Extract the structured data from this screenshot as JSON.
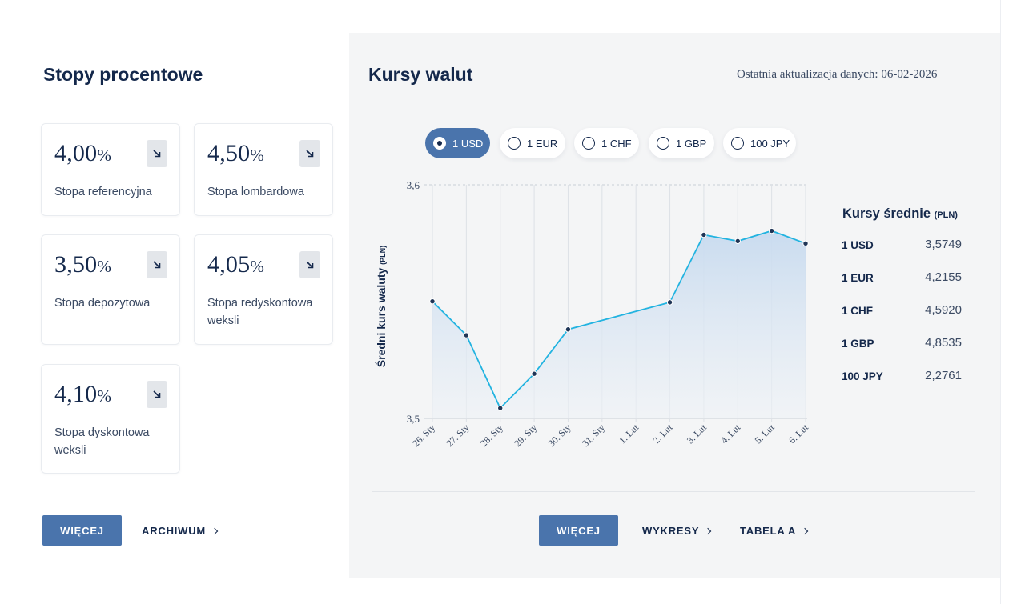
{
  "rates": {
    "title": "Stopy procentowe",
    "items": [
      {
        "value": "4,00",
        "pct": "%",
        "label": "Stopa referencyjna"
      },
      {
        "value": "4,50",
        "pct": "%",
        "label": "Stopa lombardowa"
      },
      {
        "value": "3,50",
        "pct": "%",
        "label": "Stopa depozytowa"
      },
      {
        "value": "4,05",
        "pct": "%",
        "label": "Stopa redyskontowa weksli"
      },
      {
        "value": "4,10",
        "pct": "%",
        "label": "Stopa dyskontowa weksli"
      }
    ],
    "more_button": "WIĘCEJ",
    "archive_link": "ARCHIWUM"
  },
  "fx": {
    "title": "Kursy walut",
    "updated": "Ostatnia aktualizacja danych: 06-02-2026",
    "currency_options": [
      "1 USD",
      "1 EUR",
      "1 CHF",
      "1 GBP",
      "100 JPY"
    ],
    "selected": "1 USD",
    "averages_title": "Kursy średnie",
    "averages_unit": "(PLN)",
    "averages": [
      {
        "currency": "1 USD",
        "value": "3,5749"
      },
      {
        "currency": "1 EUR",
        "value": "4,2155"
      },
      {
        "currency": "1 CHF",
        "value": "4,5920"
      },
      {
        "currency": "1 GBP",
        "value": "4,8535"
      },
      {
        "currency": "100 JPY",
        "value": "2,2761"
      }
    ],
    "more_button": "WIĘCEJ",
    "charts_link": "WYKRESY",
    "table_link": "TABELA A"
  },
  "chart_data": {
    "type": "area",
    "ylabel": "Średni kurs waluty",
    "ylabel_unit": "(PLN)",
    "ylim": [
      3.5,
      3.6
    ],
    "yticks": [
      "3,5",
      "3,6"
    ],
    "categories": [
      "26. Sty",
      "27. Sty",
      "28. Sty",
      "29. Sty",
      "30. Sty",
      "31. Sty",
      "1. Lut",
      "2. Lut",
      "3. Lut",
      "4. Lut",
      "5. Lut",
      "6. Lut"
    ],
    "values": [
      3.5501,
      3.5356,
      3.5044,
      3.5191,
      3.5381,
      null,
      null,
      3.5497,
      3.5786,
      3.5759,
      3.5803,
      3.5749
    ],
    "grid": true,
    "colors": {
      "line": "#22b3e0",
      "fill_top": "#cfdff0",
      "marker": "#1f3556"
    }
  }
}
